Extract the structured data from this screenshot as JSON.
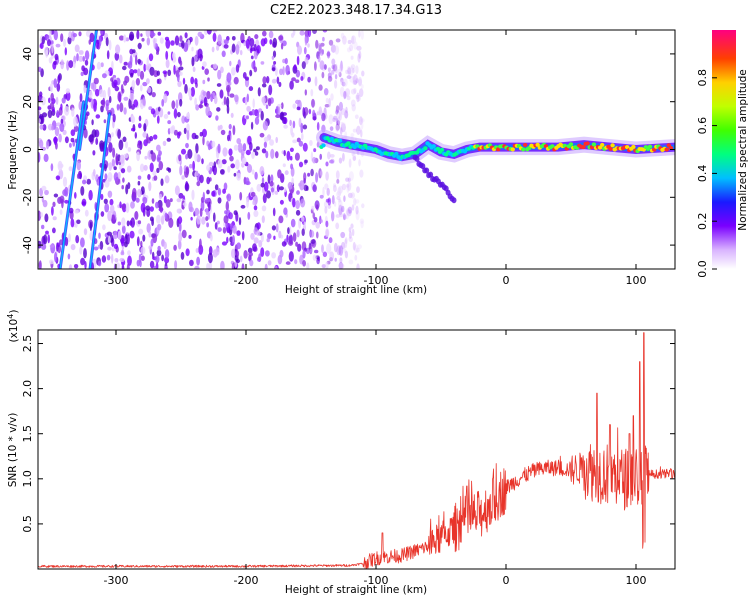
{
  "title": "C2E2.2023.348.17.34.G13",
  "chart_data": [
    {
      "type": "heatmap",
      "panel": "spectrogram",
      "xlabel": "Height of straight line (km)",
      "ylabel": "Frequency (Hz)",
      "xlim": [
        -360,
        130
      ],
      "ylim": [
        -50,
        50
      ],
      "xticks": [
        -300,
        -200,
        -100,
        0,
        100
      ],
      "xtick_labels": [
        "-300",
        "-200",
        "-100",
        "0",
        "100"
      ],
      "yticks": [
        -40,
        -20,
        0,
        20,
        40
      ],
      "ytick_labels": [
        "-40",
        "-20",
        "0",
        "20",
        "40"
      ],
      "colorbar": {
        "label": "Normalized spectral amplitude",
        "range": [
          0,
          1
        ],
        "ticks": [
          0.0,
          0.2,
          0.4,
          0.6,
          0.8
        ],
        "tick_labels": [
          "0.0",
          "0.2",
          "0.4",
          "0.6",
          "0.8"
        ]
      },
      "features": {
        "noise_region_x": [
          -360,
          -110
        ],
        "carrier_track": [
          [
            -140,
            5
          ],
          [
            -130,
            3
          ],
          [
            -120,
            2
          ],
          [
            -110,
            1
          ],
          [
            -100,
            0
          ],
          [
            -90,
            -2
          ],
          [
            -80,
            -3
          ],
          [
            -70,
            -2
          ],
          [
            -60,
            2
          ],
          [
            -50,
            -1
          ],
          [
            -40,
            -2
          ],
          [
            -30,
            0
          ],
          [
            -20,
            1
          ],
          [
            0,
            1
          ],
          [
            20,
            1
          ],
          [
            40,
            1
          ],
          [
            60,
            2
          ],
          [
            80,
            1
          ],
          [
            100,
            0
          ],
          [
            130,
            1
          ]
        ],
        "sloped_streaks": [
          {
            "from": [
              -328,
              0
            ],
            "to": [
              -315,
              50
            ]
          },
          {
            "from": [
              -343,
              -50
            ],
            "to": [
              -325,
              20
            ]
          },
          {
            "from": [
              -320,
              -50
            ],
            "to": [
              -305,
              15
            ]
          }
        ]
      }
    },
    {
      "type": "line",
      "panel": "snr",
      "xlabel": "Height of straight line (km)",
      "ylabel": "SNR (10 * v/v)",
      "yscale_label": "(x10",
      "yscale_exp": "4",
      "yscale_close": ")",
      "xlim": [
        -360,
        130
      ],
      "ylim": [
        0,
        2.65
      ],
      "xticks": [
        -300,
        -200,
        -100,
        0,
        100
      ],
      "xtick_labels": [
        "-300",
        "-200",
        "-100",
        "0",
        "100"
      ],
      "yticks": [
        0.5,
        1.0,
        1.5,
        2.0,
        2.5
      ],
      "ytick_labels": [
        "0.5",
        "1.0",
        "1.5",
        "2.0",
        "2.5"
      ],
      "color": "#e8342a",
      "envelope": {
        "x": [
          -360,
          -200,
          -120,
          -110,
          -100,
          -80,
          -60,
          -50,
          -40,
          -30,
          -20,
          -10,
          0,
          10,
          20,
          30,
          40,
          50,
          60,
          70,
          80,
          90,
          100,
          105,
          110,
          130
        ],
        "y": [
          0.03,
          0.03,
          0.04,
          0.06,
          0.12,
          0.15,
          0.25,
          0.35,
          0.45,
          0.55,
          0.6,
          0.75,
          0.9,
          1.0,
          1.08,
          1.12,
          1.12,
          1.1,
          1.12,
          1.08,
          1.05,
          1.0,
          1.02,
          1.0,
          1.05,
          1.06
        ]
      },
      "spikes": [
        [
          -95,
          0.4
        ],
        [
          -30,
          0.92
        ],
        [
          70,
          1.95
        ],
        [
          80,
          1.6
        ],
        [
          95,
          1.5
        ],
        [
          103,
          2.3
        ],
        [
          106,
          2.62
        ],
        [
          98,
          1.7
        ]
      ]
    }
  ]
}
